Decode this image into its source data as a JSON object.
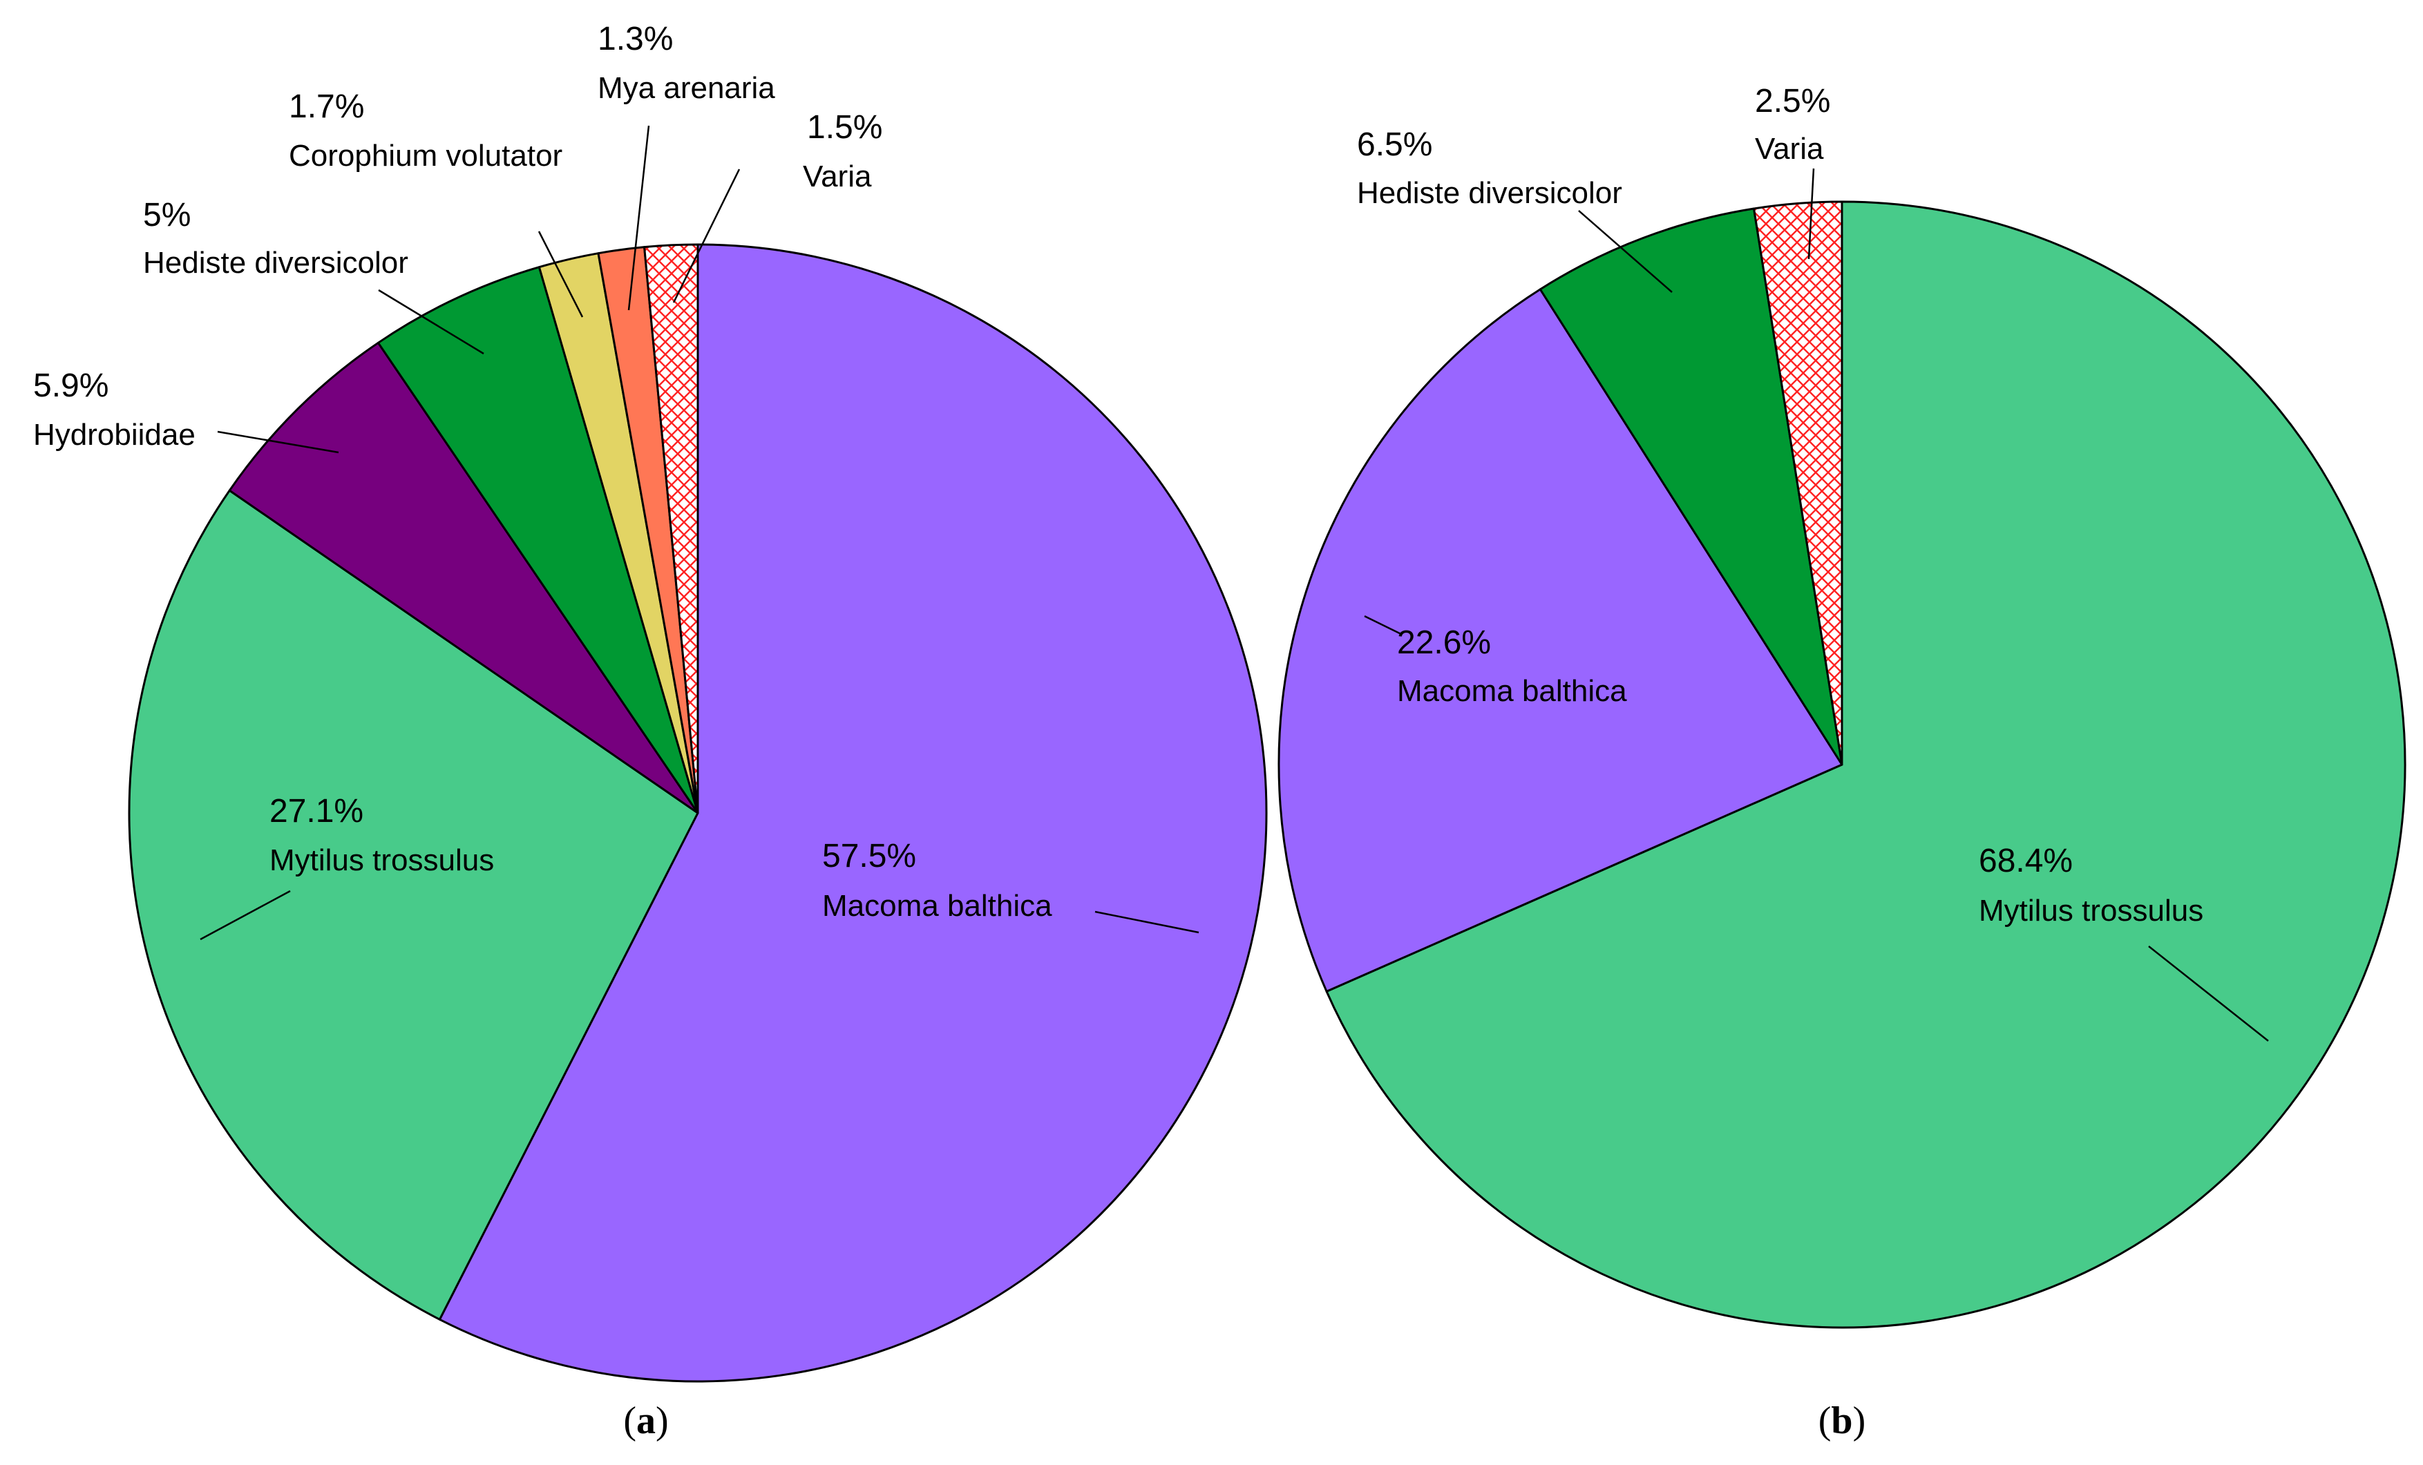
{
  "chart_data": [
    {
      "type": "pie",
      "panel_label": "a",
      "start_angle_deg": 0,
      "direction": "clockwise",
      "slices": [
        {
          "name": "Macoma balthica",
          "value": 57.5,
          "label": "57.5%",
          "color": "#9966FF",
          "pattern": "none"
        },
        {
          "name": "Mytilus trossulus",
          "value": 27.1,
          "label": "27.1%",
          "color": "#48CB8A",
          "pattern": "none"
        },
        {
          "name": "Hydrobiidae",
          "value": 5.9,
          "label": "5.9%",
          "color": "#76007E",
          "pattern": "none"
        },
        {
          "name": "Hediste diversicolor",
          "value": 5.0,
          "label": "5%",
          "color": "#009933",
          "pattern": "none"
        },
        {
          "name": "Corophium volutator",
          "value": 1.7,
          "label": "1.7%",
          "color": "#E2D464",
          "pattern": "none"
        },
        {
          "name": "Mya arenaria",
          "value": 1.3,
          "label": "1.3%",
          "color": "#FF7755",
          "pattern": "none"
        },
        {
          "name": "Varia",
          "value": 1.5,
          "label": "1.5%",
          "color": "#FF2222",
          "pattern": "crosshatch"
        }
      ]
    },
    {
      "type": "pie",
      "panel_label": "b",
      "start_angle_deg": 0,
      "direction": "clockwise",
      "slices": [
        {
          "name": "Mytilus trossulus",
          "value": 68.4,
          "label": "68.4%",
          "color": "#48CB8A",
          "pattern": "none"
        },
        {
          "name": "Macoma balthica",
          "value": 22.6,
          "label": "22.6%",
          "color": "#9966FF",
          "pattern": "none"
        },
        {
          "name": "Hediste diversicolor",
          "value": 6.5,
          "label": "6.5%",
          "color": "#009933",
          "pattern": "none"
        },
        {
          "name": "Varia",
          "value": 2.5,
          "label": "2.5%",
          "color": "#FF2222",
          "pattern": "crosshatch"
        }
      ]
    }
  ]
}
